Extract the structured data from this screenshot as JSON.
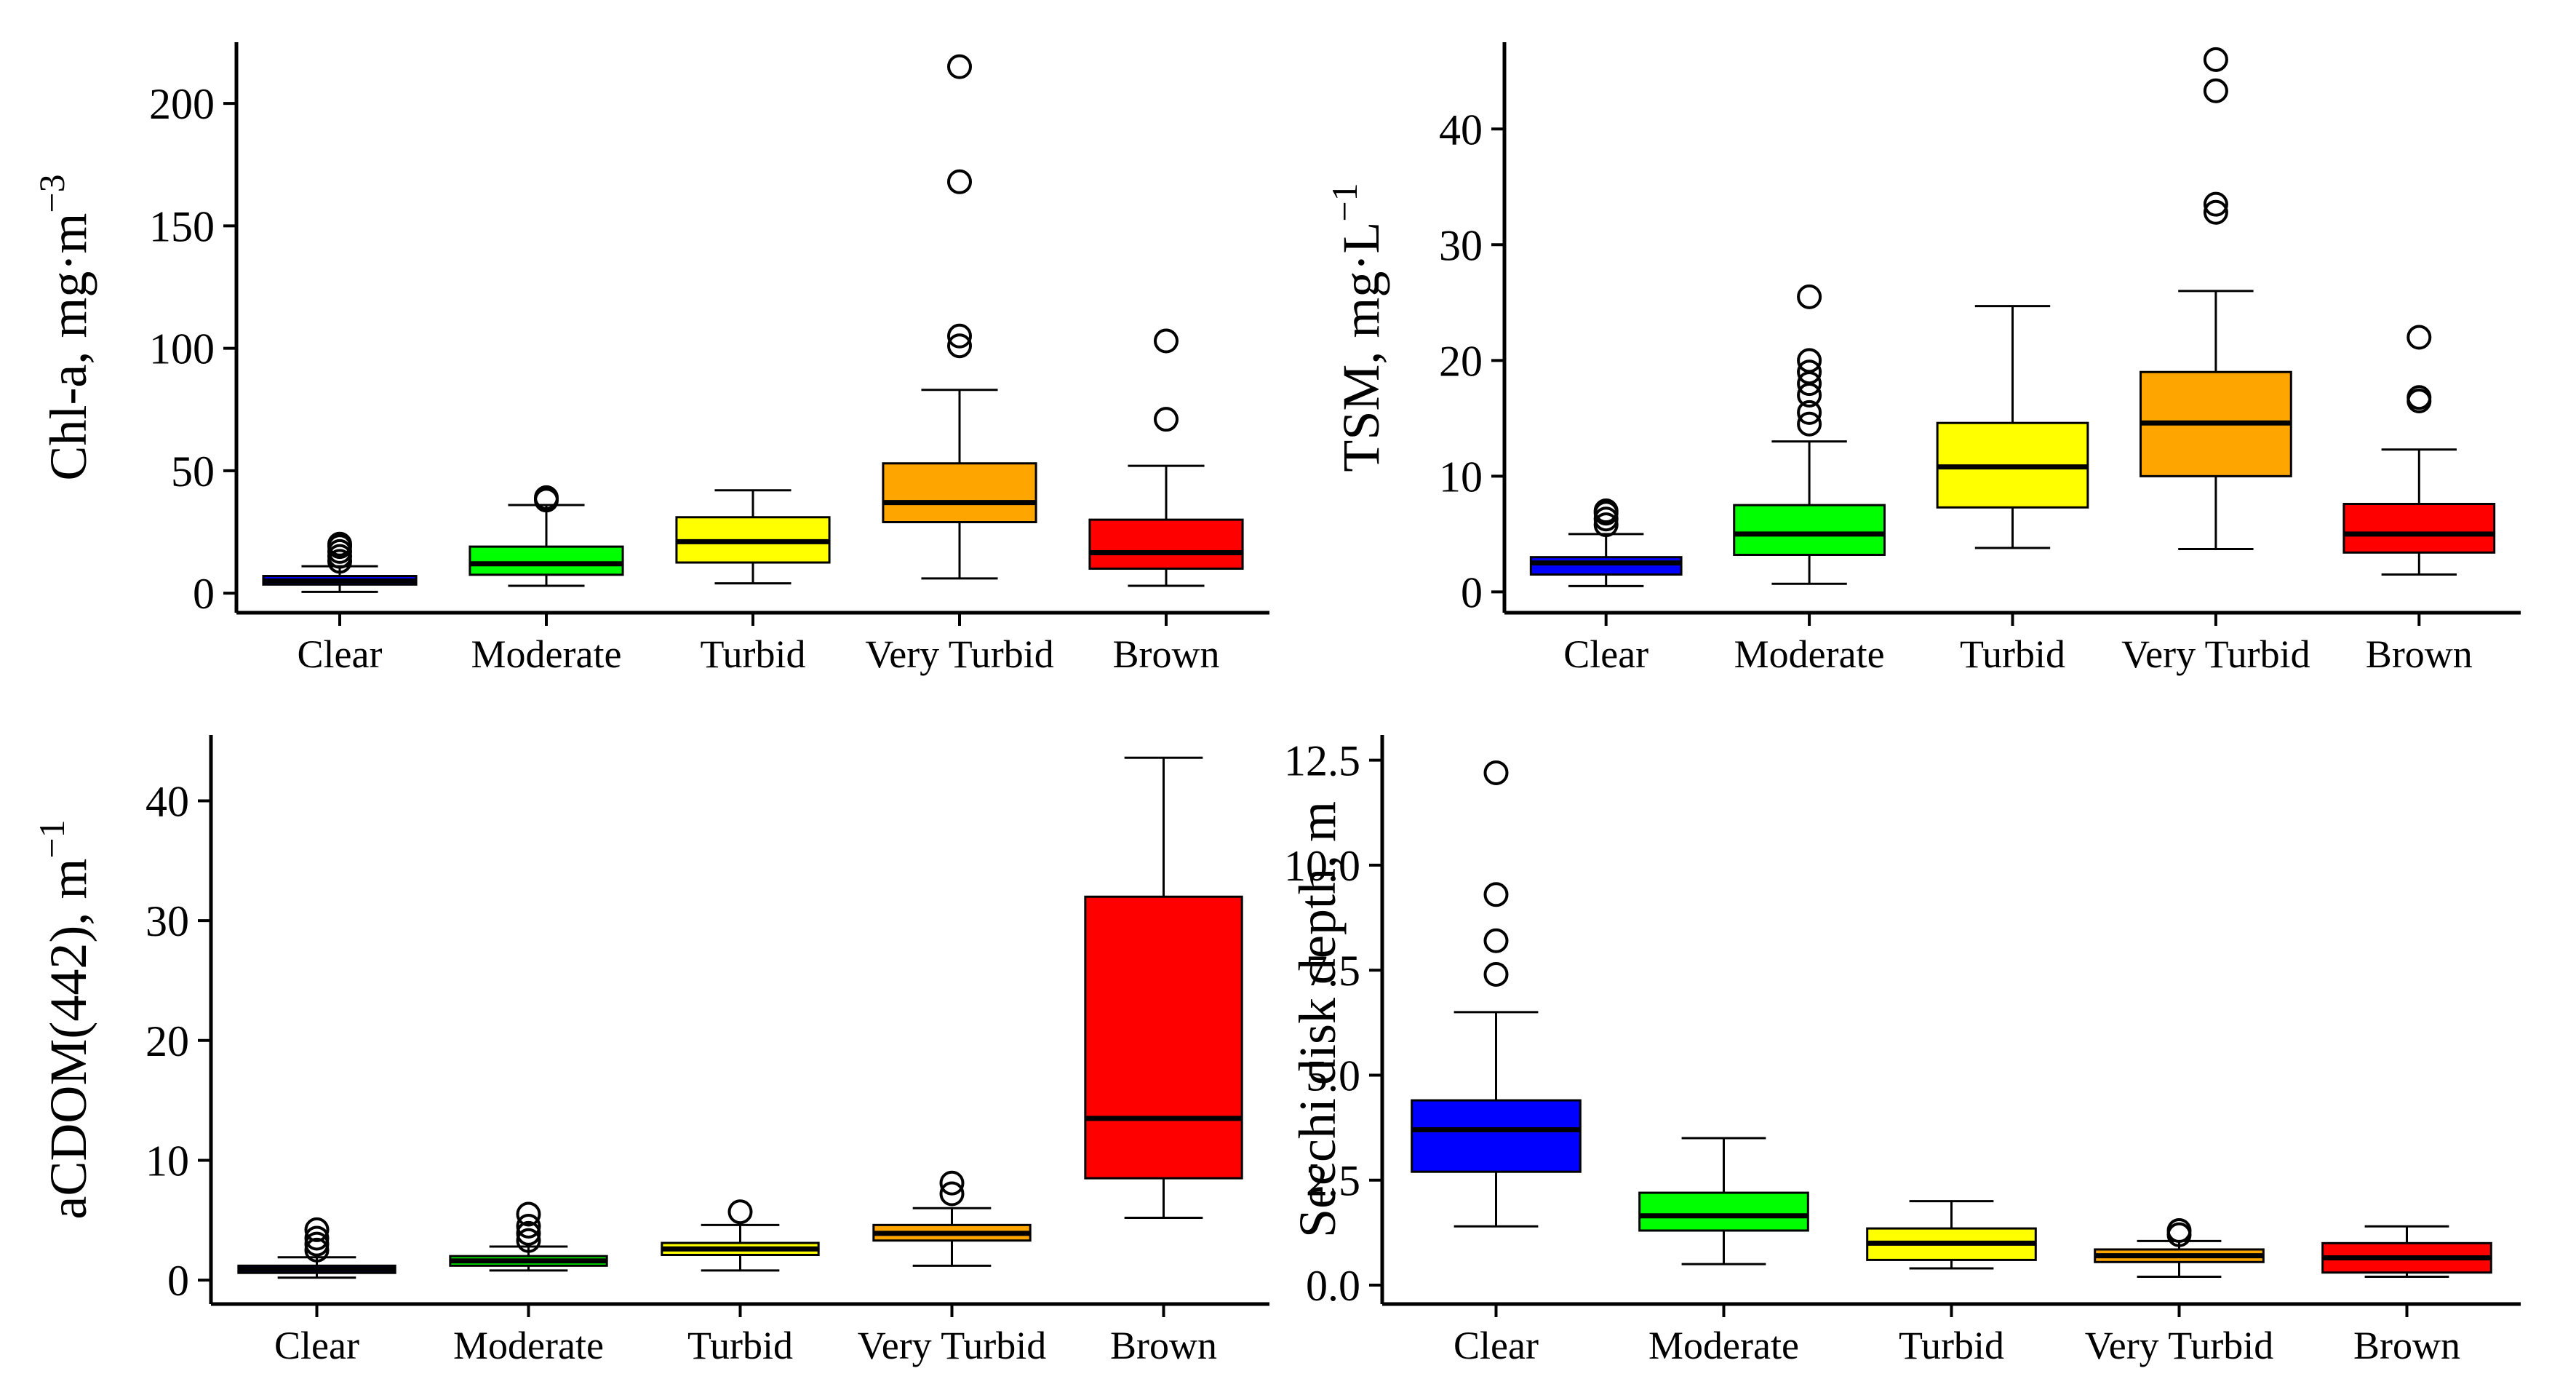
{
  "colors": {
    "Clear": "#0000ff",
    "Moderate": "#00ff00",
    "Turbid": "#ffff00",
    "Very Turbid": "#ffa500",
    "Brown": "#ff0000"
  },
  "chart_data": [
    {
      "type": "box",
      "ylabel": "Chl-a, mg·m",
      "ylabel_sup": "−3",
      "categories": [
        "Clear",
        "Moderate",
        "Turbid",
        "Very Turbid",
        "Brown"
      ],
      "yticks": [
        0,
        50,
        100,
        150,
        200
      ],
      "ylim": [
        -8,
        225
      ],
      "grid": false,
      "boxes": [
        {
          "category": "Clear",
          "whisker_low": 0.5,
          "q1": 3.5,
          "median": 5,
          "q3": 7,
          "whisker_high": 11,
          "outliers": [
            13,
            15,
            17,
            19,
            20
          ]
        },
        {
          "category": "Moderate",
          "whisker_low": 3,
          "q1": 7.5,
          "median": 12,
          "q3": 19,
          "whisker_high": 36,
          "outliers": [
            38,
            39
          ]
        },
        {
          "category": "Turbid",
          "whisker_low": 4,
          "q1": 12.5,
          "median": 21,
          "q3": 31,
          "whisker_high": 42,
          "outliers": []
        },
        {
          "category": "Very Turbid",
          "whisker_low": 6,
          "q1": 29,
          "median": 37,
          "q3": 53,
          "whisker_high": 83,
          "outliers": [
            101,
            105,
            168,
            215
          ]
        },
        {
          "category": "Brown",
          "whisker_low": 3,
          "q1": 10,
          "median": 16.5,
          "q3": 30,
          "whisker_high": 52,
          "outliers": [
            71,
            103
          ]
        }
      ]
    },
    {
      "type": "box",
      "ylabel": "TSM, mg·L",
      "ylabel_sup": "−1",
      "categories": [
        "Clear",
        "Moderate",
        "Turbid",
        "Very Turbid",
        "Brown"
      ],
      "yticks": [
        0,
        10,
        20,
        30,
        40
      ],
      "ylim": [
        -1.8,
        47.5
      ],
      "grid": false,
      "boxes": [
        {
          "category": "Clear",
          "whisker_low": 0.5,
          "q1": 1.5,
          "median": 2.5,
          "q3": 3,
          "whisker_high": 5,
          "outliers": [
            5.8,
            6.3,
            6.8,
            7
          ]
        },
        {
          "category": "Moderate",
          "whisker_low": 0.7,
          "q1": 3.2,
          "median": 5,
          "q3": 7.5,
          "whisker_high": 13,
          "outliers": [
            14.5,
            15.5,
            17,
            18,
            19,
            20,
            25.5
          ]
        },
        {
          "category": "Turbid",
          "whisker_low": 3.8,
          "q1": 7.3,
          "median": 10.8,
          "q3": 14.6,
          "whisker_high": 24.7,
          "outliers": []
        },
        {
          "category": "Very Turbid",
          "whisker_low": 3.7,
          "q1": 10,
          "median": 14.6,
          "q3": 19,
          "whisker_high": 26,
          "outliers": [
            32.8,
            33.5,
            43.3,
            46
          ]
        },
        {
          "category": "Brown",
          "whisker_low": 1.5,
          "q1": 3.4,
          "median": 5,
          "q3": 7.6,
          "whisker_high": 12.3,
          "outliers": [
            16.5,
            16.8,
            22
          ]
        }
      ]
    },
    {
      "type": "box",
      "ylabel": "aCDOM(442), m",
      "ylabel_sup": "−1",
      "categories": [
        "Clear",
        "Moderate",
        "Turbid",
        "Very Turbid",
        "Brown"
      ],
      "yticks": [
        0,
        10,
        20,
        30,
        40
      ],
      "ylim": [
        -2,
        45.5
      ],
      "grid": false,
      "boxes": [
        {
          "category": "Clear",
          "whisker_low": 0.2,
          "q1": 0.6,
          "median": 0.9,
          "q3": 1.2,
          "whisker_high": 1.9,
          "outliers": [
            2.5,
            3,
            3.5,
            4.2
          ]
        },
        {
          "category": "Moderate",
          "whisker_low": 0.8,
          "q1": 1.2,
          "median": 1.6,
          "q3": 2,
          "whisker_high": 2.8,
          "outliers": [
            3.3,
            3.9,
            4.5,
            5.5
          ]
        },
        {
          "category": "Turbid",
          "whisker_low": 0.8,
          "q1": 2.1,
          "median": 2.6,
          "q3": 3.1,
          "whisker_high": 4.6,
          "outliers": [
            5.7
          ]
        },
        {
          "category": "Very Turbid",
          "whisker_low": 1.2,
          "q1": 3.3,
          "median": 3.9,
          "q3": 4.6,
          "whisker_high": 6,
          "outliers": [
            7.2,
            8.1
          ]
        },
        {
          "category": "Brown",
          "whisker_low": 5.2,
          "q1": 8.5,
          "median": 13.5,
          "q3": 32,
          "whisker_high": 43.6,
          "outliers": []
        }
      ]
    },
    {
      "type": "box",
      "ylabel": "Secchi disk depth, m",
      "ylabel_sup": "",
      "categories": [
        "Clear",
        "Moderate",
        "Turbid",
        "Very Turbid",
        "Brown"
      ],
      "yticks": [
        0,
        2.5,
        5,
        7.5,
        10,
        12.5
      ],
      "yticklabels": [
        "0.0",
        "2.5",
        "5.0",
        "7.5",
        "10.0",
        "12.5"
      ],
      "ylim": [
        -0.45,
        13.1
      ],
      "grid": false,
      "boxes": [
        {
          "category": "Clear",
          "whisker_low": 1.4,
          "q1": 2.7,
          "median": 3.7,
          "q3": 4.4,
          "whisker_high": 6.5,
          "outliers": [
            7.4,
            8.2,
            9.3,
            12.2
          ]
        },
        {
          "category": "Moderate",
          "whisker_low": 0.5,
          "q1": 1.3,
          "median": 1.65,
          "q3": 2.2,
          "whisker_high": 3.5,
          "outliers": []
        },
        {
          "category": "Turbid",
          "whisker_low": 0.4,
          "q1": 0.6,
          "median": 1,
          "q3": 1.35,
          "whisker_high": 2,
          "outliers": []
        },
        {
          "category": "Very Turbid",
          "whisker_low": 0.2,
          "q1": 0.55,
          "median": 0.7,
          "q3": 0.85,
          "whisker_high": 1.05,
          "outliers": [
            1.2,
            1.3
          ]
        },
        {
          "category": "Brown",
          "whisker_low": 0.2,
          "q1": 0.3,
          "median": 0.65,
          "q3": 1,
          "whisker_high": 1.4,
          "outliers": []
        }
      ]
    }
  ]
}
